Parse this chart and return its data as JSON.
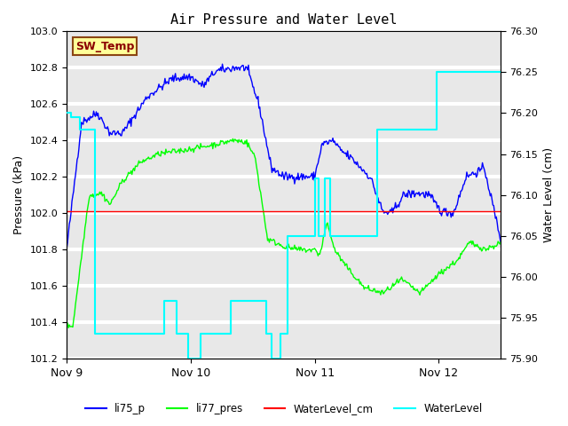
{
  "title": "Air Pressure and Water Level",
  "ylabel_left": "Pressure (kPa)",
  "ylabel_right": "Water Level (cm)",
  "xlim_days": [
    0,
    3.5
  ],
  "ylim_left": [
    101.2,
    103.0
  ],
  "ylim_right": [
    75.9,
    76.3
  ],
  "x_tick_labels": [
    "Nov 9",
    "Nov 10",
    "Nov 11",
    "Nov 12"
  ],
  "x_tick_positions": [
    0,
    1,
    2,
    3
  ],
  "annotation_text": "SW_Temp",
  "annotation_color": "#8B0000",
  "annotation_bg": "#FFFF99",
  "annotation_border": "#8B4513",
  "background_color": "#e8e8e8",
  "line_li75p_color": "blue",
  "line_li77pres_color": "lime",
  "line_wl_cm_color": "red",
  "line_wl_color": "cyan",
  "grid_color": "white",
  "left_ticks": [
    101.2,
    101.4,
    101.6,
    101.8,
    102.0,
    102.2,
    102.4,
    102.6,
    102.8,
    103.0
  ],
  "right_ticks": [
    75.9,
    75.95,
    76.0,
    76.05,
    76.1,
    76.15,
    76.2,
    76.25,
    76.3
  ]
}
